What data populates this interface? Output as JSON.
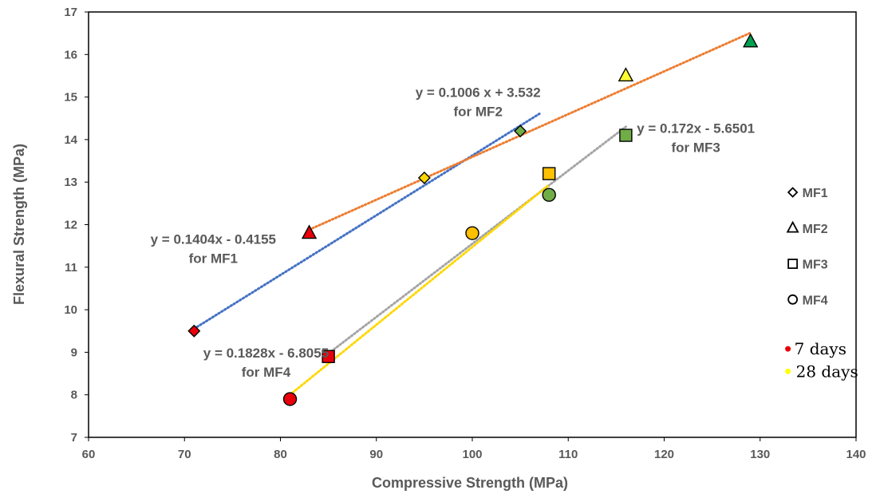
{
  "chart_data": {
    "type": "scatter",
    "xlabel": "Compressive Strength (MPa)",
    "ylabel": "Flexural Strength (MPa)",
    "xlim": [
      60,
      140
    ],
    "ylim": [
      7,
      17
    ],
    "xticks": [
      "60",
      "70",
      "80",
      "90",
      "100",
      "110",
      "120",
      "130",
      "140"
    ],
    "yticks": [
      "7",
      "8",
      "9",
      "10",
      "11",
      "12",
      "13",
      "14",
      "15",
      "16",
      "17"
    ],
    "grid": false,
    "legend_position": "right",
    "series": [
      {
        "name": "MF1",
        "marker": "diamond",
        "points": [
          {
            "x": 71,
            "y": 9.5,
            "fill": "#e8000b",
            "age": "7 days"
          },
          {
            "x": 95,
            "y": 13.1,
            "fill": "#ffd700",
            "age": "28 days"
          },
          {
            "x": 105,
            "y": 14.2,
            "fill": "#70ad47",
            "age": ""
          }
        ],
        "trend": {
          "slope": 0.1404,
          "intercept": -0.4155,
          "x_from": 71,
          "x_to": 107,
          "color": "#4472c4"
        },
        "equation": [
          "y = 0.1404x - 0.4155",
          "for MF1"
        ]
      },
      {
        "name": "MF2",
        "marker": "triangle",
        "points": [
          {
            "x": 83,
            "y": 11.8,
            "fill": "#e8000b",
            "age": "7 days"
          },
          {
            "x": 116,
            "y": 15.5,
            "fill": "#ffff33",
            "age": "28 days"
          },
          {
            "x": 129,
            "y": 16.3,
            "fill": "#00a050",
            "age": ""
          }
        ],
        "trend": {
          "slope": 0.1006,
          "intercept": 3.532,
          "x_from": 83,
          "x_to": 129,
          "color": "#ed7d31"
        },
        "equation": [
          "y = 0.1006 x + 3.532",
          "for MF2"
        ]
      },
      {
        "name": "MF3",
        "marker": "square",
        "points": [
          {
            "x": 85,
            "y": 8.9,
            "fill": "#e8000b",
            "age": "7 days"
          },
          {
            "x": 108,
            "y": 13.2,
            "fill": "#ffc000",
            "age": "28 days"
          },
          {
            "x": 116,
            "y": 14.1,
            "fill": "#70ad47",
            "age": ""
          }
        ],
        "trend": {
          "slope": 0.172,
          "intercept": -5.6501,
          "x_from": 85,
          "x_to": 116,
          "color": "#a5a5a5"
        },
        "equation": [
          "y = 0.172x - 5.6501",
          "for MF3"
        ]
      },
      {
        "name": "MF4",
        "marker": "circle",
        "points": [
          {
            "x": 81,
            "y": 7.9,
            "fill": "#e8000b",
            "age": "7 days"
          },
          {
            "x": 100,
            "y": 11.8,
            "fill": "#ffc000",
            "age": "28 days"
          },
          {
            "x": 108,
            "y": 12.7,
            "fill": "#70ad47",
            "age": ""
          }
        ],
        "trend": {
          "slope": 0.1828,
          "intercept": -6.8055,
          "x_from": 81,
          "x_to": 108,
          "color": "#ffd700"
        },
        "equation": [
          "y = 0.1828x - 6.8055",
          "for MF4"
        ]
      }
    ],
    "age_legend": [
      {
        "label": "7 days",
        "color": "#e8000b"
      },
      {
        "label": "28 days",
        "color": "#ffff00"
      }
    ]
  }
}
